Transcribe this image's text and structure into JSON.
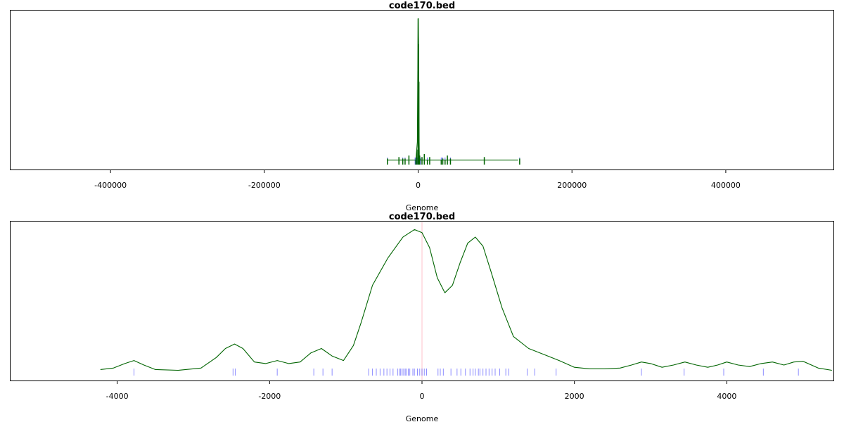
{
  "chart_data": [
    {
      "type": "line",
      "title": "code170.bed",
      "xlabel": "Genome",
      "ylabel": "",
      "xlim": [
        -530000,
        540000
      ],
      "ylim": [
        0,
        1.0
      ],
      "x_ticks": [
        -400000,
        -200000,
        0,
        200000,
        400000
      ],
      "x_tick_labels": [
        "-400000",
        "-200000",
        "0",
        "200000",
        "400000"
      ],
      "colors": {
        "density": "#006400",
        "rug": "#0000ff",
        "spikes": "#006400"
      },
      "density_series": {
        "name": "",
        "x": [
          -40000,
          -3000,
          -1000,
          0,
          500,
          1000,
          1500,
          3000,
          130000
        ],
        "y": [
          0.03,
          0.03,
          0.15,
          0.97,
          0.82,
          0.3,
          0.05,
          0.03,
          0.03
        ]
      },
      "spike_series": {
        "x": [
          -40000,
          -25000,
          -20000,
          -17000,
          -12000,
          -3000,
          -1500,
          0,
          500,
          1000,
          2000,
          5000,
          8000,
          12000,
          15000,
          30000,
          32000,
          35000,
          38000,
          42000,
          86000,
          132000
        ],
        "y": [
          0.04,
          0.05,
          0.04,
          0.04,
          0.06,
          0.03,
          0.1,
          0.97,
          0.8,
          0.55,
          0.06,
          0.05,
          0.07,
          0.03,
          0.05,
          0.03,
          0.04,
          0.03,
          0.06,
          0.04,
          0.05,
          0.04
        ]
      },
      "rug_positions": [
        -40000,
        -25000,
        -20000,
        -17000,
        -12000,
        -4000,
        -3000,
        -2000,
        -1500,
        -1000,
        0,
        500,
        1000,
        1500,
        2000,
        3000,
        5000,
        8000,
        12000,
        15000,
        30000,
        32000,
        35000,
        38000,
        42000,
        86000,
        132000
      ]
    },
    {
      "type": "line",
      "title": "code170.bed",
      "xlabel": "Genome",
      "ylabel": "",
      "xlim": [
        -5400,
        5400
      ],
      "ylim": [
        0,
        1.0
      ],
      "x_ticks": [
        -4000,
        -2000,
        0,
        2000,
        4000
      ],
      "x_tick_labels": [
        "-4000",
        "-2000",
        "0",
        "2000",
        "4000"
      ],
      "colors": {
        "density": "#006400",
        "rug": "#0000ff",
        "center_line": "#ffc0cb"
      },
      "center_line_x": 0,
      "density_series": {
        "name": "",
        "x": [
          -4220,
          -4050,
          -3900,
          -3780,
          -3650,
          -3500,
          -3200,
          -2900,
          -2700,
          -2580,
          -2460,
          -2350,
          -2200,
          -2050,
          -1900,
          -1750,
          -1600,
          -1460,
          -1320,
          -1180,
          -1030,
          -900,
          -800,
          -650,
          -450,
          -250,
          -100,
          0,
          100,
          200,
          300,
          400,
          500,
          600,
          700,
          800,
          900,
          1050,
          1200,
          1400,
          1600,
          1800,
          2000,
          2200,
          2400,
          2600,
          2750,
          2880,
          3000,
          3150,
          3300,
          3450,
          3600,
          3750,
          3880,
          4000,
          4150,
          4300,
          4450,
          4600,
          4750,
          4880,
          5000,
          5200,
          5380
        ],
        "y": [
          0.04,
          0.05,
          0.08,
          0.1,
          0.07,
          0.04,
          0.035,
          0.05,
          0.12,
          0.18,
          0.21,
          0.18,
          0.09,
          0.08,
          0.1,
          0.08,
          0.09,
          0.15,
          0.18,
          0.13,
          0.1,
          0.2,
          0.35,
          0.6,
          0.78,
          0.92,
          0.97,
          0.95,
          0.85,
          0.65,
          0.55,
          0.6,
          0.75,
          0.88,
          0.92,
          0.86,
          0.7,
          0.45,
          0.26,
          0.18,
          0.14,
          0.1,
          0.055,
          0.045,
          0.045,
          0.05,
          0.07,
          0.09,
          0.08,
          0.055,
          0.07,
          0.09,
          0.07,
          0.055,
          0.07,
          0.09,
          0.07,
          0.06,
          0.08,
          0.09,
          0.07,
          0.09,
          0.095,
          0.05,
          0.035
        ]
      },
      "rug_positions": [
        -3780,
        -2480,
        -2450,
        -1900,
        -1420,
        -1300,
        -1180,
        -700,
        -650,
        -600,
        -550,
        -500,
        -460,
        -420,
        -380,
        -320,
        -300,
        -280,
        -260,
        -240,
        -220,
        -200,
        -180,
        -160,
        -120,
        -100,
        -60,
        -30,
        0,
        30,
        60,
        210,
        240,
        280,
        380,
        460,
        510,
        570,
        630,
        670,
        700,
        740,
        760,
        800,
        840,
        880,
        920,
        960,
        1020,
        1100,
        1140,
        1380,
        1480,
        1760,
        2880,
        3440,
        3960,
        4480,
        4940
      ]
    }
  ]
}
